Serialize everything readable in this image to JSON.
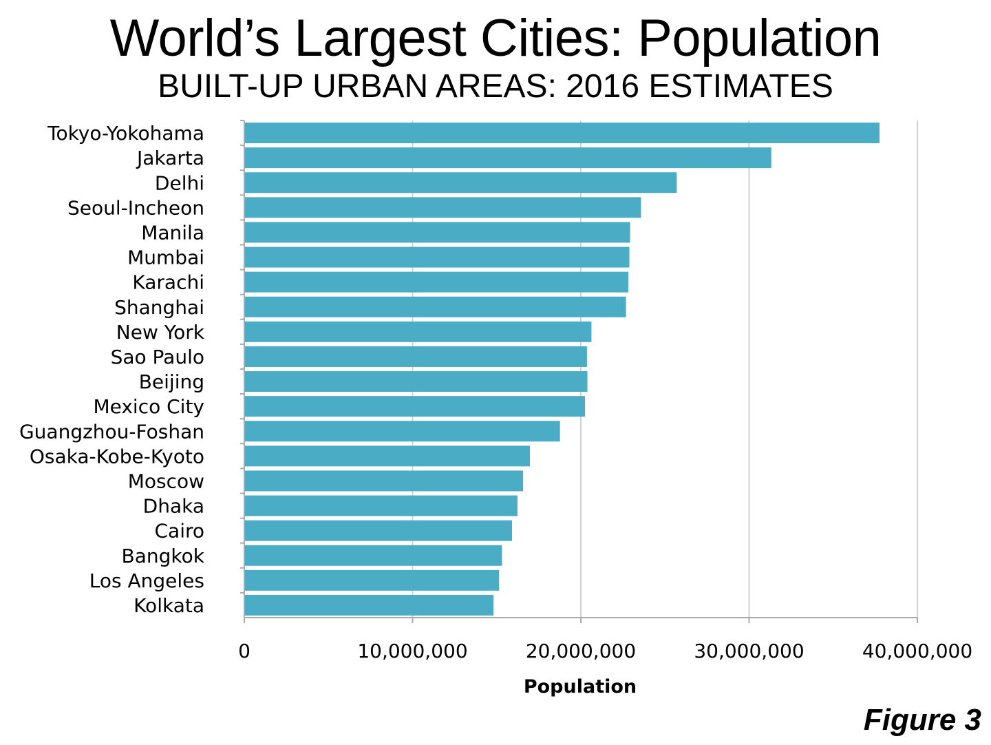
{
  "figure_label": "Figure 3",
  "colors": {
    "bar": "#4BACC6",
    "grid": "#D0D0D0",
    "axis": "#AAAAAA"
  },
  "chart_data": {
    "type": "bar",
    "orientation": "horizontal",
    "title": "World’s Largest Cities: Population",
    "subtitle": "BUILT-UP URBAN AREAS: 2016 ESTIMATES",
    "xlabel": "Population",
    "ylabel": "",
    "xlim": [
      0,
      40000000
    ],
    "xticks": [
      0,
      10000000,
      20000000,
      30000000,
      40000000
    ],
    "xtick_labels": [
      "0",
      "10,000,000",
      "20,000,000",
      "30,000,000",
      "40,000,000"
    ],
    "grid": "vertical",
    "legend": "none",
    "categories": [
      "Tokyo-Yokohama",
      "Jakarta",
      "Delhi",
      "Seoul-Incheon",
      "Manila",
      "Mumbai",
      "Karachi",
      "Shanghai",
      "New York",
      "Sao Paulo",
      "Beijing",
      "Mexico City",
      "Guangzhou-Foshan",
      "Osaka-Kobe-Kyoto",
      "Moscow",
      "Dhaka",
      "Cairo",
      "Bangkok",
      "Los Angeles",
      "Kolkata"
    ],
    "values": [
      37750000,
      31320000,
      25700000,
      23575000,
      22930000,
      22885000,
      22825000,
      22685000,
      20630000,
      20365000,
      20390000,
      20245000,
      18760000,
      16975000,
      16570000,
      16235000,
      15910000,
      15315000,
      15140000,
      14810000
    ]
  }
}
